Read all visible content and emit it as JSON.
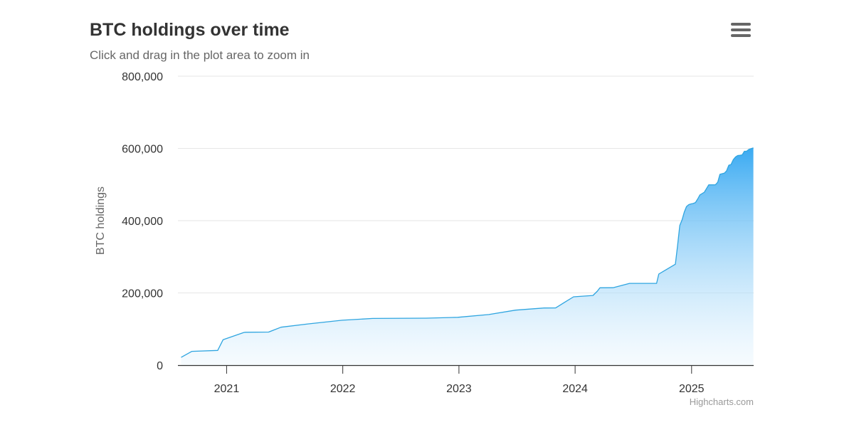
{
  "header": {
    "title": "BTC holdings over time",
    "subtitle": "Click and drag in the plot area to zoom in",
    "menu_icon": "hamburger-menu-icon"
  },
  "credits": "Highcharts.com",
  "colors": {
    "line": "#2fa5e0",
    "area_top": "#3aaaf2",
    "area_bottom": "#e6f4fd",
    "grid": "#e6e6e6",
    "axis": "#333333"
  },
  "chart_data": {
    "type": "area",
    "title": "BTC holdings over time",
    "subtitle": "Click and drag in the plot area to zoom in",
    "xlabel": "",
    "ylabel": "BTC holdings",
    "ylim": [
      0,
      800000
    ],
    "yticks": [
      0,
      200000,
      400000,
      600000,
      800000
    ],
    "ytick_labels": [
      "0",
      "200,000",
      "400,000",
      "600,000",
      "800,000"
    ],
    "xticks": [
      "2021-01-01",
      "2022-01-01",
      "2023-01-01",
      "2024-01-01",
      "2025-01-01"
    ],
    "xtick_labels": [
      "2021",
      "2022",
      "2023",
      "2024",
      "2025"
    ],
    "xlim": [
      "2020-08-01",
      "2025-07-15"
    ],
    "grid": true,
    "legend": "none",
    "series": [
      {
        "x": [
          "2020-08-11",
          "2020-09-14",
          "2020-12-04",
          "2020-12-21",
          "2021-02-24",
          "2021-03-01",
          "2021-05-13",
          "2021-06-21",
          "2021-09-13",
          "2021-12-30",
          "2022-04-05",
          "2022-09-20",
          "2022-12-28",
          "2023-04-05",
          "2023-06-28",
          "2023-09-25",
          "2023-11-01",
          "2023-11-30",
          "2023-12-27",
          "2024-02-26",
          "2024-03-11",
          "2024-03-19",
          "2024-04-29",
          "2024-06-20",
          "2024-08-01",
          "2024-09-13",
          "2024-09-20",
          "2024-11-11",
          "2024-11-18",
          "2024-11-25",
          "2024-12-02",
          "2024-12-09",
          "2024-12-16",
          "2024-12-23",
          "2024-12-30",
          "2025-01-06",
          "2025-01-13",
          "2025-01-21",
          "2025-01-27",
          "2025-02-10",
          "2025-02-24",
          "2025-03-17",
          "2025-03-24",
          "2025-03-31",
          "2025-04-14",
          "2025-04-21",
          "2025-04-28",
          "2025-05-05",
          "2025-05-12",
          "2025-05-19",
          "2025-05-26",
          "2025-06-02",
          "2025-06-09",
          "2025-06-16",
          "2025-06-23",
          "2025-06-30",
          "2025-07-14"
        ],
        "y": [
          21454,
          38250,
          40824,
          70470,
          90531,
          91064,
          91579,
          105085,
          114042,
          124391,
          129218,
          130000,
          132500,
          140000,
          152333,
          158245,
          158400,
          174530,
          189150,
          193000,
          205000,
          214246,
          214400,
          226331,
          226500,
          226500,
          252220,
          279420,
          331200,
          386700,
          402100,
          423650,
          439000,
          444262,
          446400,
          447470,
          450000,
          461000,
          471107,
          478740,
          499096,
          499226,
          506137,
          528185,
          531644,
          538200,
          553555,
          555450,
          568840,
          576230,
          580250,
          580955,
          582000,
          592100,
          592345,
          597325,
          601550
        ]
      }
    ]
  }
}
